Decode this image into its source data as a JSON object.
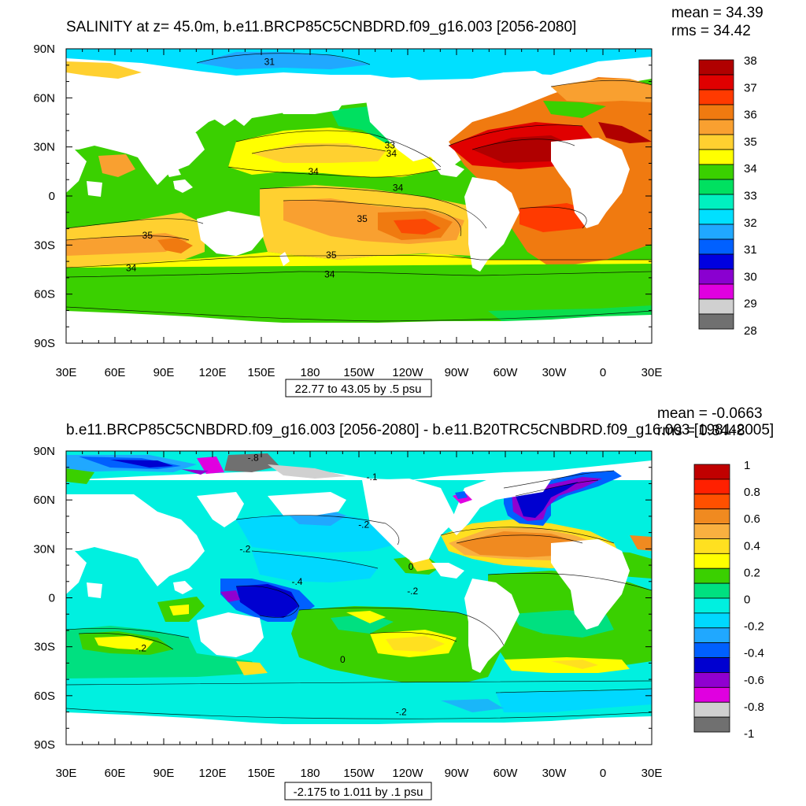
{
  "chart_data": [
    {
      "type": "heatmap",
      "kind": "filled contour map",
      "title": "SALINITY at z=  45.0m, b.e11.BRCP85C5CNBDRD.f09_g16.003 [2056-2080]",
      "stats": {
        "mean": "mean = 34.39",
        "rms": "rms = 34.42"
      },
      "info_label": "22.77 to 43.05 by .5 psu",
      "x_ticks": [
        "30E",
        "60E",
        "90E",
        "120E",
        "150E",
        "180",
        "150W",
        "120W",
        "90W",
        "60W",
        "30W",
        "0",
        "30E"
      ],
      "y_ticks": [
        "90N",
        "60N",
        "30N",
        "0",
        "30S",
        "60S",
        "90S"
      ],
      "xlim": [
        30,
        390
      ],
      "ylim": [
        -90,
        90
      ],
      "colorbar": {
        "labels": [
          "38",
          "37",
          "36",
          "35",
          "34",
          "33",
          "32",
          "31",
          "30",
          "29",
          "28"
        ],
        "colors": [
          "#b00000",
          "#e00000",
          "#ff3a00",
          "#f07a10",
          "#f9a030",
          "#ffd030",
          "#ffff00",
          "#3ad000",
          "#00e060",
          "#00f0c0",
          "#00e0ff",
          "#20a8ff",
          "#0060ff",
          "#0000e0",
          "#8a00d0",
          "#e000e0",
          "#d0d0d0",
          "#707070"
        ]
      },
      "contour_labels": [
        {
          "text": "31",
          "lon": 155,
          "lat": 82
        },
        {
          "text": "33",
          "lon": 229,
          "lat": 31
        },
        {
          "text": "34",
          "lon": 230,
          "lat": 26
        },
        {
          "text": "34",
          "lon": 182,
          "lat": 15
        },
        {
          "text": "34",
          "lon": 234,
          "lat": 5
        },
        {
          "text": "35",
          "lon": 212,
          "lat": -14
        },
        {
          "text": "35",
          "lon": 80,
          "lat": -24
        },
        {
          "text": "35",
          "lon": 193,
          "lat": -36
        },
        {
          "text": "34",
          "lon": 70,
          "lat": -44
        },
        {
          "text": "34",
          "lon": 192,
          "lat": -48
        }
      ]
    },
    {
      "type": "heatmap",
      "kind": "filled contour map",
      "title": "b.e11.BRCP85C5CNBDRD.f09_g16.003 [2056-2080] - b.e11.B20TRC5CNBDRD.f09_g16.003 [1981-2005]",
      "stats": {
        "mean": "mean = -0.0663",
        "rms": "rms = 0.3448"
      },
      "info_label": "-2.175 to 1.011 by .1 psu",
      "x_ticks": [
        "30E",
        "60E",
        "90E",
        "120E",
        "150E",
        "180",
        "150W",
        "120W",
        "90W",
        "60W",
        "30W",
        "0",
        "30E"
      ],
      "y_ticks": [
        "90N",
        "60N",
        "30N",
        "0",
        "30S",
        "60S",
        "90S"
      ],
      "xlim": [
        30,
        390
      ],
      "ylim": [
        -90,
        90
      ],
      "colorbar": {
        "labels": [
          "1",
          "0.8",
          "0.6",
          "0.4",
          "0.2",
          "0",
          "-0.2",
          "-0.4",
          "-0.6",
          "-0.8",
          "-1"
        ],
        "colors": [
          "#c00000",
          "#ff2000",
          "#ff5000",
          "#f08a20",
          "#f9b040",
          "#ffe020",
          "#ffff00",
          "#3ad000",
          "#00e080",
          "#00f0e0",
          "#00d8ff",
          "#20a8ff",
          "#0060ff",
          "#0000d0",
          "#9000d0",
          "#e000e0",
          "#d0d0d0",
          "#707070"
        ]
      },
      "contour_labels": [
        {
          "text": "-.8",
          "lon": 145,
          "lat": 86
        },
        {
          "text": "-.1",
          "lon": 218,
          "lat": 74
        },
        {
          "text": "-.2",
          "lon": 213,
          "lat": 45
        },
        {
          "text": "-.2",
          "lon": 140,
          "lat": 30
        },
        {
          "text": "0",
          "lon": 242,
          "lat": 19
        },
        {
          "text": "-.4",
          "lon": 172,
          "lat": 10
        },
        {
          "text": "-.2",
          "lon": 243,
          "lat": 4
        },
        {
          "text": "-.2",
          "lon": 76,
          "lat": -31
        },
        {
          "text": "0",
          "lon": 200,
          "lat": -38
        },
        {
          "text": "-.2",
          "lon": 236,
          "lat": -70
        }
      ]
    }
  ]
}
